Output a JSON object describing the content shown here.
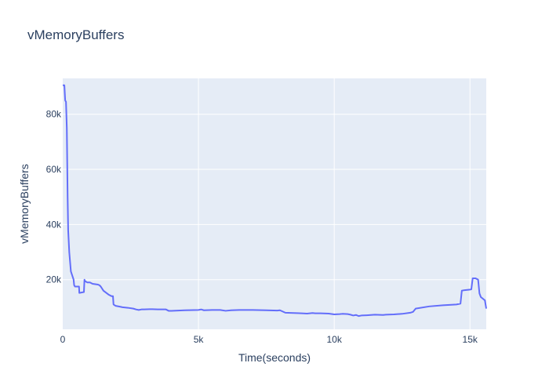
{
  "chart_data": {
    "type": "line",
    "title": "vMemoryBuffers",
    "xlabel": "Time(seconds)",
    "ylabel": "vMemoryBuffers",
    "xlim": [
      0,
      15600
    ],
    "ylim": [
      2000,
      93000
    ],
    "x_ticks": [
      0,
      5000,
      10000,
      15000
    ],
    "x_tick_labels": [
      "0",
      "5k",
      "10k",
      "15k"
    ],
    "y_ticks": [
      20000,
      40000,
      60000,
      80000
    ],
    "y_tick_labels": [
      "20k",
      "40k",
      "60k",
      "80k"
    ],
    "grid": true,
    "colors": {
      "plot_bg": "#e5ecf6",
      "grid": "#ffffff",
      "line": "#636efa",
      "text": "#2a3f5f"
    },
    "series": [
      {
        "x": [
          0,
          60,
          90,
          120,
          150,
          180,
          200,
          240,
          300,
          400,
          420,
          450,
          600,
          610,
          780,
          800,
          820,
          870,
          900,
          1000,
          1100,
          1300,
          1350,
          1400,
          1500,
          1700,
          1800,
          1850,
          1870,
          1900,
          1950,
          2100,
          2200,
          2400,
          2600,
          2700,
          2800,
          2900,
          3000,
          3200,
          3300,
          3500,
          3800,
          3900,
          4000,
          4500,
          5000,
          5100,
          5200,
          5500,
          5800,
          6000,
          6200,
          6500,
          7000,
          7500,
          7900,
          8000,
          8200,
          8500,
          8800,
          9000,
          9200,
          9300,
          9500,
          9800,
          10000,
          10200,
          10300,
          10500,
          10600,
          10700,
          10800,
          10900,
          11000,
          11200,
          11500,
          11800,
          11900,
          12200,
          12500,
          12800,
          12900,
          13000,
          13500,
          14000,
          14500,
          14650,
          14700,
          14800,
          15000,
          15050,
          15100,
          15200,
          15300,
          15350,
          15400,
          15550,
          15600
        ],
        "y": [
          90500,
          90500,
          85000,
          84500,
          75000,
          50000,
          38000,
          30000,
          23000,
          20000,
          18000,
          17500,
          17500,
          15200,
          15500,
          20000,
          19500,
          19200,
          19000,
          19000,
          18500,
          18200,
          18000,
          17500,
          16000,
          14500,
          14000,
          14000,
          11000,
          10800,
          10500,
          10200,
          10000,
          9800,
          9500,
          9200,
          9000,
          9200,
          9200,
          9300,
          9300,
          9200,
          9200,
          8700,
          8700,
          8900,
          9000,
          9200,
          8900,
          9000,
          9000,
          8700,
          8900,
          9000,
          9000,
          8900,
          8800,
          8900,
          8000,
          7900,
          7800,
          7700,
          7900,
          7800,
          7800,
          7700,
          7400,
          7500,
          7600,
          7500,
          7300,
          7000,
          7200,
          6800,
          7000,
          7100,
          7300,
          7200,
          7300,
          7400,
          7600,
          8000,
          8300,
          9500,
          10300,
          10700,
          11000,
          11300,
          16000,
          16200,
          16400,
          16500,
          20500,
          20500,
          20000,
          15000,
          13700,
          12500,
          9500
        ]
      }
    ]
  }
}
